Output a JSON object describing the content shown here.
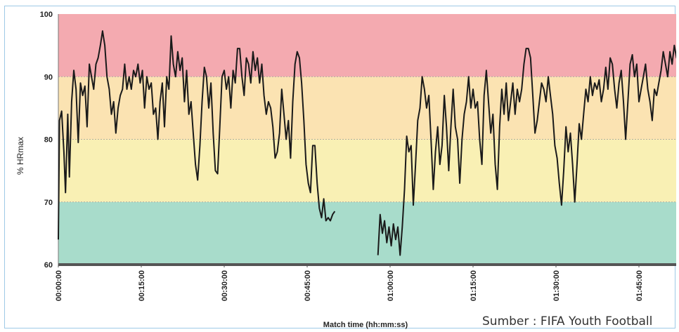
{
  "chart_data": {
    "type": "line",
    "ylabel": "% HRmax",
    "xlabel": "Match time (hh:mm:ss)",
    "ylim": [
      60,
      100
    ],
    "xlim_minutes": [
      0,
      113
    ],
    "yticks": [
      "60",
      "70",
      "80",
      "90",
      "100"
    ],
    "xticks": [
      "00:00:00",
      "00:15:00",
      "00:30:00",
      "00:45:00",
      "01:00:00",
      "01:15:00",
      "01:30:00",
      "01:45:00"
    ],
    "zones": [
      {
        "from": 60,
        "to": 70,
        "color": "#a8dccb"
      },
      {
        "from": 70,
        "to": 80,
        "color": "#f9f0b4"
      },
      {
        "from": 80,
        "to": 90,
        "color": "#fbe3b2"
      },
      {
        "from": 90,
        "to": 100,
        "color": "#f4aab0"
      }
    ],
    "line_color": "#1a1a1a",
    "grid": true,
    "series": [
      {
        "segments": [
          [
            [
              0,
              64
            ],
            [
              0.2,
              83
            ],
            [
              0.6,
              84.5
            ],
            [
              1.0,
              78
            ],
            [
              1.3,
              71.5
            ],
            [
              1.7,
              84
            ],
            [
              2.0,
              74
            ],
            [
              2.4,
              86
            ],
            [
              2.8,
              91
            ],
            [
              3.2,
              88
            ],
            [
              3.6,
              79.5
            ],
            [
              4.0,
              89
            ],
            [
              4.4,
              87
            ],
            [
              4.8,
              88.5
            ],
            [
              5.2,
              82
            ],
            [
              5.6,
              92
            ],
            [
              6.0,
              90
            ],
            [
              6.4,
              88
            ],
            [
              6.8,
              92
            ],
            [
              7.2,
              93
            ],
            [
              7.6,
              95
            ],
            [
              8.0,
              97.3
            ],
            [
              8.4,
              95
            ],
            [
              8.8,
              90
            ],
            [
              9.2,
              88
            ],
            [
              9.6,
              84
            ],
            [
              10.0,
              86
            ],
            [
              10.4,
              81
            ],
            [
              10.8,
              85
            ],
            [
              11.2,
              87
            ],
            [
              11.6,
              88
            ],
            [
              12.0,
              92
            ],
            [
              12.4,
              88
            ],
            [
              12.8,
              90
            ],
            [
              13.2,
              88
            ],
            [
              13.6,
              91
            ],
            [
              14.0,
              90
            ],
            [
              14.4,
              92
            ],
            [
              14.8,
              89
            ],
            [
              15.2,
              91
            ],
            [
              15.6,
              85
            ],
            [
              16.0,
              90
            ],
            [
              16.4,
              88
            ],
            [
              16.8,
              89
            ],
            [
              17.2,
              84
            ],
            [
              17.6,
              85
            ],
            [
              18.0,
              80
            ],
            [
              18.4,
              86
            ],
            [
              18.8,
              89
            ],
            [
              19.2,
              82
            ],
            [
              19.6,
              90
            ],
            [
              20.0,
              88
            ],
            [
              20.4,
              96.5
            ],
            [
              20.8,
              92
            ],
            [
              21.2,
              90
            ],
            [
              21.6,
              94
            ],
            [
              22.0,
              91
            ],
            [
              22.4,
              93
            ],
            [
              22.8,
              86
            ],
            [
              23.2,
              91
            ],
            [
              23.6,
              84
            ],
            [
              24.0,
              86
            ],
            [
              24.4,
              81
            ],
            [
              24.8,
              76
            ],
            [
              25.2,
              73.5
            ],
            [
              25.6,
              79
            ],
            [
              26.0,
              86
            ],
            [
              26.4,
              91.5
            ],
            [
              26.8,
              90
            ],
            [
              27.2,
              85
            ],
            [
              27.6,
              89
            ],
            [
              28.0,
              81
            ],
            [
              28.4,
              75
            ],
            [
              28.8,
              74.5
            ],
            [
              29.2,
              82
            ],
            [
              29.6,
              90
            ],
            [
              30.0,
              91
            ],
            [
              30.4,
              88
            ],
            [
              30.8,
              90
            ],
            [
              31.2,
              85
            ],
            [
              31.6,
              91
            ],
            [
              32.0,
              89
            ],
            [
              32.4,
              94.5
            ],
            [
              32.8,
              94.5
            ],
            [
              33.2,
              90
            ],
            [
              33.6,
              87
            ],
            [
              34.0,
              93
            ],
            [
              34.4,
              92
            ],
            [
              34.8,
              89
            ],
            [
              35.2,
              94
            ],
            [
              35.6,
              91
            ],
            [
              36.0,
              93
            ],
            [
              36.4,
              89
            ],
            [
              36.8,
              92
            ],
            [
              37.2,
              87
            ],
            [
              37.6,
              84
            ],
            [
              38.0,
              86
            ],
            [
              38.4,
              85
            ],
            [
              38.8,
              82
            ],
            [
              39.2,
              77
            ],
            [
              39.6,
              78
            ],
            [
              40.0,
              81
            ],
            [
              40.4,
              88
            ],
            [
              40.8,
              84
            ],
            [
              41.2,
              80
            ],
            [
              41.6,
              83
            ],
            [
              42.0,
              77
            ],
            [
              42.4,
              86
            ],
            [
              42.8,
              92
            ],
            [
              43.2,
              94
            ],
            [
              43.6,
              93
            ],
            [
              44.0,
              89
            ],
            [
              44.4,
              83
            ],
            [
              44.8,
              76
            ],
            [
              45.2,
              73
            ],
            [
              45.6,
              71.5
            ],
            [
              46.0,
              79
            ],
            [
              46.4,
              79
            ],
            [
              46.8,
              73
            ],
            [
              47.2,
              69
            ],
            [
              47.6,
              67.5
            ],
            [
              48.0,
              70.5
            ],
            [
              48.4,
              67
            ],
            [
              48.8,
              67.5
            ],
            [
              49.2,
              67
            ],
            [
              49.6,
              68
            ],
            [
              50.0,
              68.5
            ]
          ],
          [
            [
              57.8,
              61.5
            ],
            [
              58.2,
              68
            ],
            [
              58.6,
              65
            ],
            [
              59.0,
              67
            ],
            [
              59.4,
              63.5
            ],
            [
              59.8,
              66
            ],
            [
              60.2,
              63
            ],
            [
              60.6,
              66.5
            ],
            [
              61.0,
              64
            ],
            [
              61.4,
              66
            ],
            [
              61.8,
              61.5
            ],
            [
              62.2,
              66
            ],
            [
              62.6,
              72
            ],
            [
              63.0,
              80.5
            ],
            [
              63.4,
              78
            ],
            [
              63.8,
              79
            ],
            [
              64.2,
              69.5
            ],
            [
              64.6,
              76
            ],
            [
              65.0,
              83
            ],
            [
              65.4,
              85
            ],
            [
              65.8,
              90
            ],
            [
              66.2,
              88
            ],
            [
              66.6,
              85
            ],
            [
              67.0,
              87
            ],
            [
              67.4,
              80
            ],
            [
              67.8,
              72
            ],
            [
              68.2,
              78
            ],
            [
              68.6,
              82
            ],
            [
              69.0,
              76
            ],
            [
              69.4,
              79
            ],
            [
              69.8,
              87
            ],
            [
              70.2,
              82
            ],
            [
              70.6,
              75
            ],
            [
              71.0,
              82
            ],
            [
              71.4,
              88
            ],
            [
              71.8,
              82
            ],
            [
              72.2,
              80
            ],
            [
              72.6,
              73
            ],
            [
              73.0,
              80
            ],
            [
              73.4,
              84
            ],
            [
              73.8,
              86
            ],
            [
              74.2,
              90
            ],
            [
              74.6,
              85
            ],
            [
              75.0,
              88
            ],
            [
              75.4,
              85
            ],
            [
              75.8,
              86
            ],
            [
              76.2,
              80
            ],
            [
              76.6,
              76
            ],
            [
              77.0,
              87
            ],
            [
              77.4,
              91
            ],
            [
              77.8,
              86
            ],
            [
              78.2,
              81
            ],
            [
              78.6,
              84
            ],
            [
              79.0,
              76
            ],
            [
              79.4,
              72
            ],
            [
              79.8,
              82
            ],
            [
              80.2,
              88
            ],
            [
              80.6,
              84
            ],
            [
              81.0,
              89
            ],
            [
              81.4,
              83
            ],
            [
              81.8,
              86
            ],
            [
              82.2,
              89
            ],
            [
              82.6,
              84
            ],
            [
              83.0,
              88
            ],
            [
              83.4,
              86
            ],
            [
              83.8,
              88
            ],
            [
              84.2,
              92
            ],
            [
              84.6,
              94.5
            ],
            [
              85.0,
              94.5
            ],
            [
              85.4,
              93
            ],
            [
              85.8,
              87
            ],
            [
              86.2,
              81
            ],
            [
              86.6,
              83
            ],
            [
              87.0,
              86
            ],
            [
              87.4,
              89
            ],
            [
              87.8,
              88
            ],
            [
              88.2,
              86
            ],
            [
              88.6,
              90
            ],
            [
              89.0,
              87
            ],
            [
              89.4,
              84
            ],
            [
              89.8,
              79
            ],
            [
              90.2,
              77
            ],
            [
              90.6,
              73
            ],
            [
              91.0,
              69.5
            ],
            [
              91.4,
              75
            ],
            [
              91.8,
              82
            ],
            [
              92.2,
              78
            ],
            [
              92.6,
              81
            ],
            [
              93.0,
              76
            ],
            [
              93.4,
              70
            ],
            [
              93.8,
              76
            ],
            [
              94.2,
              82.5
            ],
            [
              94.6,
              80
            ],
            [
              95.0,
              84
            ],
            [
              95.4,
              88
            ],
            [
              95.8,
              86
            ],
            [
              96.2,
              90
            ],
            [
              96.6,
              87
            ],
            [
              97.0,
              89
            ],
            [
              97.4,
              88
            ],
            [
              97.8,
              89.5
            ],
            [
              98.2,
              86
            ],
            [
              98.6,
              88
            ],
            [
              99.0,
              91.5
            ],
            [
              99.4,
              88
            ],
            [
              99.8,
              93
            ],
            [
              100.2,
              92
            ],
            [
              100.6,
              88
            ],
            [
              101.0,
              85
            ],
            [
              101.4,
              89
            ],
            [
              101.8,
              91
            ],
            [
              102.2,
              86
            ],
            [
              102.6,
              80
            ],
            [
              103.0,
              86
            ],
            [
              103.4,
              92
            ],
            [
              103.8,
              93.5
            ],
            [
              104.2,
              90
            ],
            [
              104.6,
              92
            ],
            [
              105.0,
              86
            ],
            [
              105.4,
              88
            ],
            [
              105.8,
              90
            ],
            [
              106.2,
              92
            ],
            [
              106.6,
              88
            ],
            [
              107.0,
              86
            ],
            [
              107.4,
              83
            ],
            [
              107.8,
              88
            ],
            [
              108.2,
              87
            ],
            [
              108.6,
              89
            ],
            [
              109.0,
              91
            ],
            [
              109.4,
              94
            ],
            [
              109.8,
              92
            ],
            [
              110.2,
              90
            ],
            [
              110.6,
              94
            ],
            [
              111.0,
              92
            ],
            [
              111.4,
              95
            ],
            [
              111.8,
              93
            ],
            [
              112.2,
              95.5
            ],
            [
              112.6,
              94
            ],
            [
              113.0,
              93
            ]
          ]
        ]
      }
    ]
  },
  "source_note": "Sumber : FIFA Youth Football"
}
